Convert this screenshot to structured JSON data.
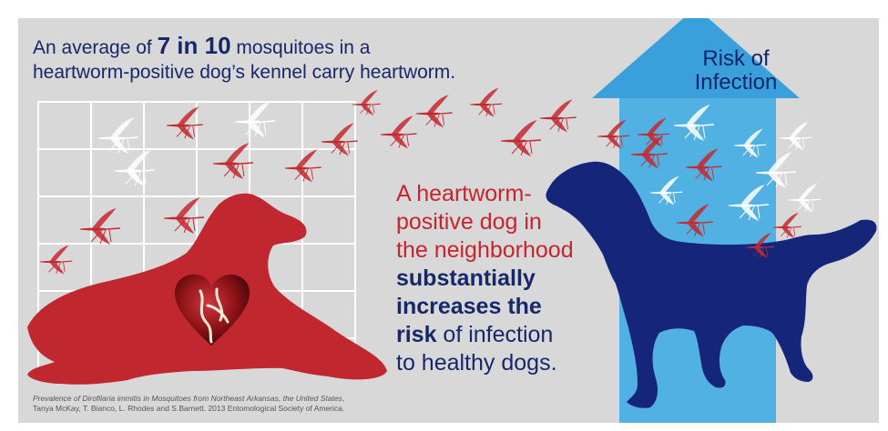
{
  "headline": {
    "line1_before": "An average of ",
    "number": "7 in 10",
    "line1_after": " mosquitoes in a",
    "line2": "heartworm-positive dog’s kennel carry heartworm."
  },
  "risk_arrow": {
    "line1": "Risk of",
    "line2": "Infection"
  },
  "main_message": {
    "red_1": "A heartworm-",
    "red_2": "positive dog in",
    "red_3": "the neighborhood",
    "bold_1": "substantially",
    "bold_2": "increases the",
    "bold_3": "risk",
    "plain_3": " of infection",
    "plain_4": "to healthy dogs."
  },
  "citation": {
    "italic_part": "Prevalence of Dirofilaria immitis in Mosquitoes from Northeast Arkansas, the United States",
    "rest_line1": ",",
    "line2": "Tanya McKay, T. Bianco, L. Rhodes and S.Barnett. 2013 Entomological Society of America."
  },
  "colors": {
    "background": "#d8d8d9",
    "navy": "#17286a",
    "red": "#c6242e",
    "arrow_blue": "#3aa0dc",
    "dog_red": "#c0272f",
    "dog_navy": "#15257a"
  },
  "icons": [
    "mosquito-icon",
    "heart-icon",
    "dog-silhouette",
    "arrow-up-icon",
    "kennel-grid"
  ]
}
